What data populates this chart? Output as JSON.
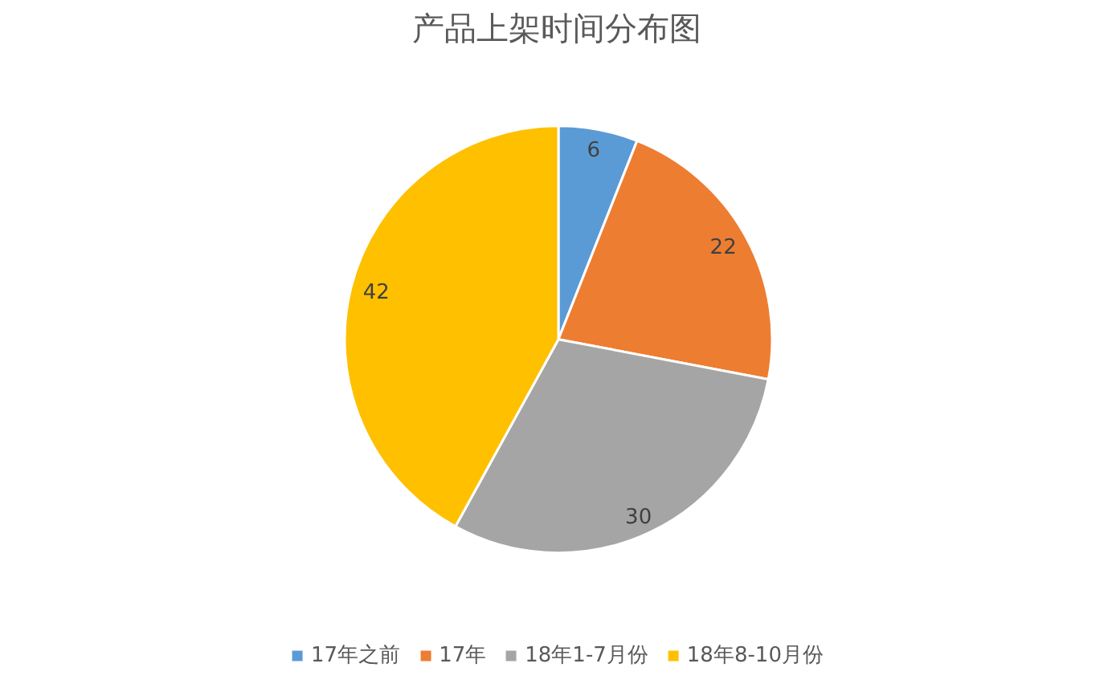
{
  "chart_data": {
    "type": "pie",
    "title": "产品上架时间分布图",
    "categories": [
      "17年之前",
      "17年",
      "18年1-7月份",
      "18年8-10月份"
    ],
    "values": [
      6,
      22,
      30,
      42
    ],
    "colors": [
      "#5b9bd5",
      "#ed7d31",
      "#a5a5a5",
      "#ffc000"
    ],
    "data_labels": true,
    "legend": "bottom"
  }
}
